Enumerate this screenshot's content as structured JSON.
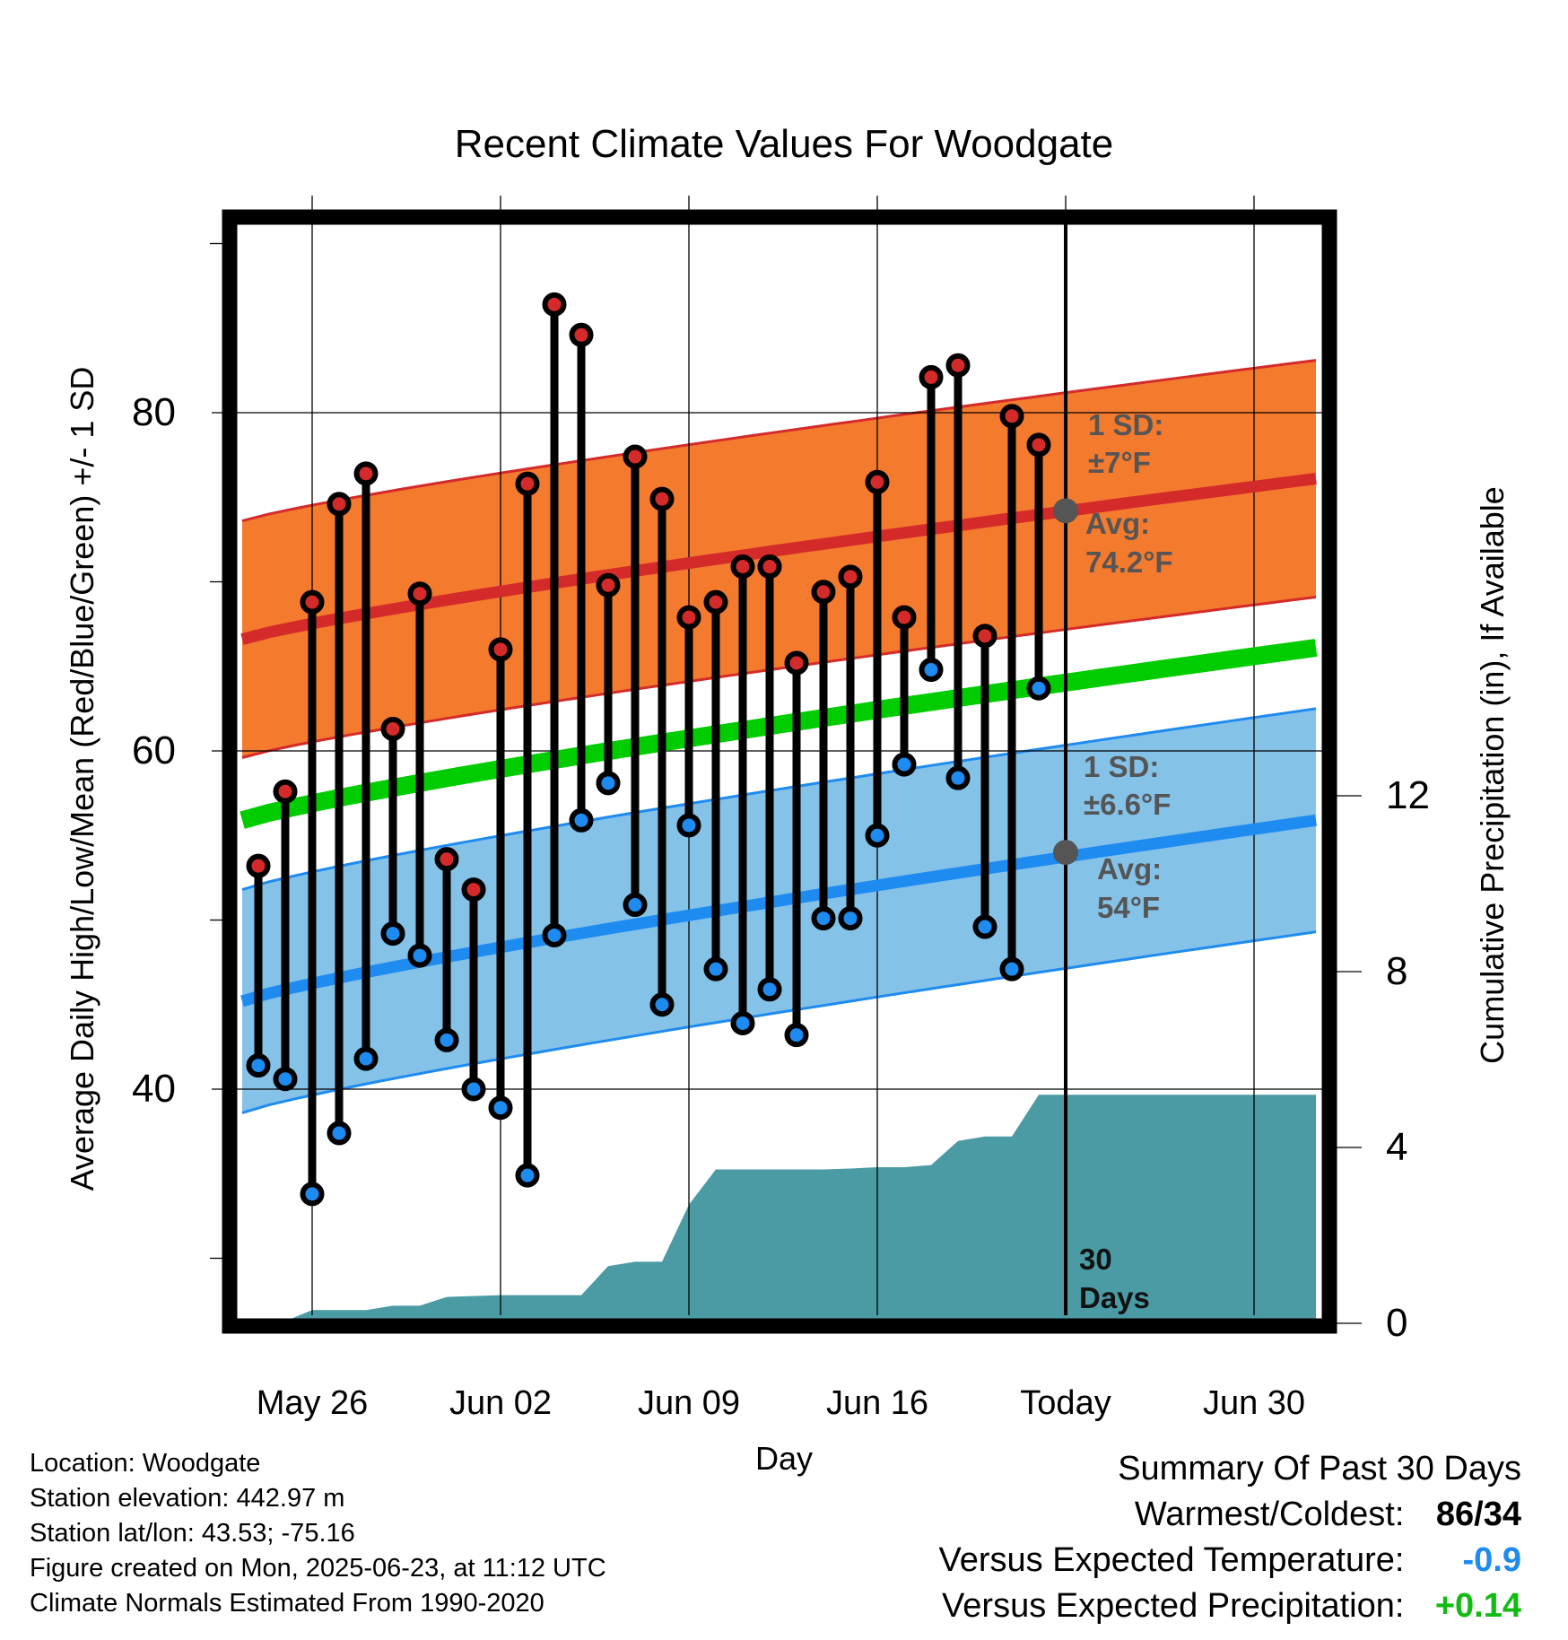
{
  "chart_data": {
    "type": "line",
    "title": "Recent Climate Values For Woodgate",
    "xlabel": "Day",
    "ylabel": "Average Daily High/Low/Mean (Red/Blue/Green) +/- 1 SD",
    "y2label": "Cumulative Precipitation (in), If Available",
    "x_tick_labels": [
      "May 26",
      "Jun 02",
      "Jun 09",
      "Jun 16",
      "Today",
      "Jun 30"
    ],
    "x_range_days": [
      -1,
      39.5
    ],
    "ylim": [
      28.5,
      92.5
    ],
    "y_ticks": [
      40,
      60,
      80
    ],
    "y2lim": [
      -0.4,
      22
    ],
    "y2_ticks": [
      0,
      4,
      8,
      12
    ],
    "grid": true,
    "annotations": {
      "high_sd": "1 SD:",
      "high_sd_value": "±7°F",
      "high_avg": "Avg:",
      "high_avg_value": "74.2°F",
      "low_sd": "1 SD:",
      "low_sd_value": "±6.6°F",
      "low_avg": "Avg:",
      "low_avg_value": "54°F",
      "period_number": "30",
      "period_unit": "Days"
    },
    "days": [
      "May 24",
      "May 25",
      "May 26",
      "May 27",
      "May 28",
      "May 29",
      "May 30",
      "May 31",
      "Jun 01",
      "Jun 02",
      "Jun 03",
      "Jun 04",
      "Jun 05",
      "Jun 06",
      "Jun 07",
      "Jun 08",
      "Jun 09",
      "Jun 10",
      "Jun 11",
      "Jun 12",
      "Jun 13",
      "Jun 14",
      "Jun 15",
      "Jun 16",
      "Jun 17",
      "Jun 18",
      "Jun 19",
      "Jun 20",
      "Jun 21",
      "Jun 22"
    ],
    "daily_high": [
      53.2,
      57.6,
      68.8,
      74.6,
      76.4,
      61.3,
      69.3,
      53.6,
      51.8,
      66.0,
      75.8,
      86.4,
      84.6,
      69.8,
      77.4,
      74.9,
      67.9,
      68.8,
      70.9,
      70.9,
      65.2,
      69.4,
      70.3,
      75.9,
      67.9,
      82.1,
      82.8,
      66.8,
      79.8,
      78.1
    ],
    "daily_low": [
      41.4,
      40.6,
      33.8,
      37.4,
      41.8,
      49.2,
      47.9,
      42.9,
      40.0,
      38.9,
      34.9,
      49.1,
      55.9,
      58.1,
      50.9,
      45.0,
      55.6,
      47.1,
      43.9,
      45.9,
      43.2,
      50.1,
      50.1,
      55.0,
      59.2,
      64.8,
      58.4,
      49.6,
      47.1,
      63.7
    ],
    "normal_high": [
      66.6,
      76.1
    ],
    "normal_high_sd": 7,
    "normal_low": [
      45.2,
      55.9
    ],
    "normal_low_sd": 6.6,
    "normal_mean": [
      55.9,
      66.1
    ],
    "today_high_avg": 74.2,
    "today_low_avg": 54,
    "precip_cumulative": [
      0,
      0.05,
      0.3,
      0.3,
      0.3,
      0.4,
      0.4,
      0.6,
      0.62,
      0.64,
      0.64,
      0.64,
      0.64,
      1.3,
      1.4,
      1.4,
      2.7,
      3.5,
      3.5,
      3.5,
      3.5,
      3.5,
      3.52,
      3.55,
      3.55,
      3.6,
      4.15,
      4.25,
      4.25,
      5.2,
      5.2
    ],
    "precip_total": 5.2,
    "colors": {
      "high_band": "#f47a2e",
      "high_line": "#d42a2a",
      "low_band": "#85c2e8",
      "low_line": "#1e8bf0",
      "mean_line": "#00cc00",
      "precip": "#4a9ba4",
      "annotation": "#555555"
    }
  },
  "footer": {
    "location": "Location: Woodgate",
    "elevation": "Station elevation: 442.97 m",
    "latlon": "Station lat/lon: 43.53; -75.16",
    "created": "Figure created on Mon, 2025-06-23, at 11:12 UTC",
    "normals": "Climate Normals Estimated From 1990-2020"
  },
  "summary": {
    "heading": "Summary Of Past 30 Days",
    "warm_cold_label": "Warmest/Coldest:",
    "warmest": "86",
    "separator": "/",
    "coldest": "34",
    "temp_label": "Versus Expected Temperature:",
    "temp_value": "-0.9",
    "precip_label": "Versus Expected Precipitation:",
    "precip_value": "+0.14",
    "temp_color": "#1e8bf0",
    "precip_color": "#11bb11"
  }
}
